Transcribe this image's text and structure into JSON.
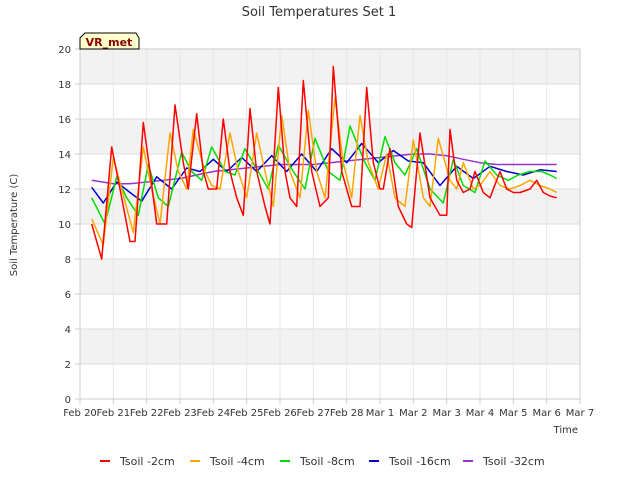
{
  "chart_data": {
    "type": "line",
    "title": "Soil Temperatures Set 1",
    "xlabel": "Time",
    "ylabel": "Soil Temperature (C)",
    "badge": "VR_met",
    "ylim": [
      0,
      20
    ],
    "yticks": [
      0,
      2,
      4,
      6,
      8,
      10,
      12,
      14,
      16,
      18,
      20
    ],
    "xlim": [
      0,
      15
    ],
    "xticks": [
      0,
      1,
      2,
      3,
      4,
      5,
      6,
      7,
      8,
      9,
      10,
      11,
      12,
      13,
      14,
      15
    ],
    "xtick_labels": [
      "Feb 20",
      "Feb 21",
      "Feb 22",
      "Feb 23",
      "Feb 24",
      "Feb 25",
      "Feb 26",
      "Feb 27",
      "Feb 28",
      "Mar 1",
      "Mar 2",
      "Mar 3",
      "Mar 4",
      "Mar 5",
      "Mar 6",
      "Mar 7"
    ],
    "grid": true,
    "legend_position": "bottom",
    "series": [
      {
        "name": "Tsoil -2cm",
        "color": "#ff0000",
        "x": [
          0.35,
          0.65,
          0.95,
          1.2,
          1.5,
          1.65,
          1.9,
          2.1,
          2.3,
          2.6,
          2.85,
          3.1,
          3.25,
          3.5,
          3.7,
          3.85,
          4.1,
          4.3,
          4.5,
          4.7,
          4.9,
          5.1,
          5.3,
          5.55,
          5.7,
          5.95,
          6.15,
          6.3,
          6.5,
          6.7,
          6.95,
          7.2,
          7.45,
          7.6,
          7.85,
          8.15,
          8.4,
          8.6,
          8.8,
          9.0,
          9.1,
          9.3,
          9.55,
          9.8,
          9.95,
          10.2,
          10.5,
          10.8,
          11.0,
          11.1,
          11.3,
          11.5,
          11.7,
          11.85,
          12.1,
          12.3,
          12.6,
          12.8,
          13.0,
          13.2,
          13.5,
          13.7,
          13.9,
          14.1,
          14.3
        ],
        "values": [
          10.0,
          8.0,
          14.4,
          12.0,
          9.0,
          9.0,
          15.8,
          13.0,
          10.0,
          10.0,
          16.8,
          13.5,
          12.0,
          16.3,
          13.0,
          12.0,
          12.0,
          16.0,
          13.0,
          11.5,
          10.5,
          16.6,
          13.0,
          11.0,
          10.0,
          17.8,
          13.0,
          11.5,
          11.0,
          18.2,
          13.0,
          11.0,
          11.5,
          19.0,
          13.0,
          11.0,
          11.0,
          17.8,
          13.5,
          12.0,
          12.0,
          14.3,
          11.0,
          10.0,
          9.8,
          15.2,
          11.5,
          10.5,
          10.5,
          15.4,
          12.5,
          11.8,
          12.0,
          13.0,
          11.8,
          11.5,
          13.0,
          12.0,
          11.8,
          11.8,
          12.0,
          12.5,
          11.8,
          11.6,
          11.5
        ]
      },
      {
        "name": "Tsoil -4cm",
        "color": "#ffa500",
        "x": [
          0.35,
          0.7,
          1.0,
          1.25,
          1.6,
          1.9,
          2.15,
          2.4,
          2.7,
          2.95,
          3.2,
          3.4,
          3.75,
          3.95,
          4.2,
          4.5,
          4.75,
          5.0,
          5.3,
          5.55,
          5.8,
          6.05,
          6.3,
          6.6,
          6.85,
          7.1,
          7.35,
          7.65,
          7.9,
          8.15,
          8.4,
          8.65,
          8.95,
          9.2,
          9.45,
          9.75,
          10.0,
          10.3,
          10.5,
          10.75,
          11.1,
          11.3,
          11.5,
          11.8,
          12.0,
          12.3,
          12.6,
          12.9,
          13.2,
          13.5,
          13.8,
          14.1,
          14.3
        ],
        "values": [
          10.3,
          8.8,
          13.8,
          12.0,
          9.5,
          14.4,
          12.0,
          10.0,
          15.2,
          13.0,
          12.0,
          15.4,
          13.0,
          12.2,
          12.0,
          15.2,
          13.0,
          11.5,
          15.2,
          13.0,
          11.0,
          16.2,
          13.0,
          11.5,
          16.5,
          13.0,
          11.5,
          17.2,
          13.5,
          11.5,
          16.2,
          13.5,
          12.0,
          14.0,
          11.5,
          11.0,
          14.8,
          11.5,
          11.0,
          14.9,
          12.5,
          12.0,
          13.5,
          12.0,
          12.2,
          13.0,
          12.2,
          12.0,
          12.2,
          12.5,
          12.2,
          12.0,
          11.8
        ]
      },
      {
        "name": "Tsoil -8cm",
        "color": "#00dd00",
        "x": [
          0.35,
          0.75,
          1.1,
          1.4,
          1.75,
          2.05,
          2.35,
          2.65,
          3.05,
          3.35,
          3.65,
          3.95,
          4.35,
          4.65,
          4.95,
          5.35,
          5.65,
          5.95,
          6.4,
          6.75,
          7.05,
          7.45,
          7.8,
          8.1,
          8.55,
          8.85,
          9.15,
          9.45,
          9.75,
          10.1,
          10.5,
          10.9,
          11.2,
          11.5,
          11.85,
          12.15,
          12.5,
          12.85,
          13.15,
          13.5,
          13.85,
          14.1,
          14.3
        ],
        "values": [
          11.5,
          10.0,
          12.7,
          11.5,
          10.5,
          13.4,
          11.5,
          11.0,
          14.1,
          13.0,
          12.5,
          14.4,
          13.0,
          12.8,
          14.3,
          13.0,
          12.0,
          14.5,
          13.0,
          12.0,
          14.9,
          13.0,
          12.5,
          15.6,
          13.5,
          12.5,
          15.0,
          13.5,
          12.8,
          14.3,
          12.0,
          11.2,
          13.7,
          12.2,
          11.8,
          13.6,
          12.8,
          12.5,
          12.8,
          13.0,
          13.0,
          12.8,
          12.6
        ]
      },
      {
        "name": "Tsoil -16cm",
        "color": "#0000cc",
        "x": [
          0.35,
          0.7,
          1.1,
          1.5,
          1.85,
          2.3,
          2.75,
          3.2,
          3.6,
          4.0,
          4.4,
          4.85,
          5.3,
          5.75,
          6.2,
          6.65,
          7.1,
          7.55,
          8.0,
          8.45,
          8.95,
          9.4,
          9.85,
          10.3,
          10.8,
          11.3,
          11.8,
          12.3,
          12.8,
          13.3,
          13.8,
          14.3
        ],
        "values": [
          12.1,
          11.2,
          12.4,
          11.8,
          11.3,
          12.7,
          12.0,
          13.2,
          13.0,
          13.7,
          13.0,
          13.8,
          13.0,
          13.9,
          13.0,
          14.0,
          13.0,
          14.3,
          13.5,
          14.6,
          13.5,
          14.2,
          13.6,
          13.5,
          12.2,
          13.3,
          12.6,
          13.3,
          13.0,
          12.8,
          13.1,
          13.0
        ]
      },
      {
        "name": "Tsoil -32cm",
        "color": "#9933cc",
        "x": [
          0.35,
          1.0,
          1.5,
          2.0,
          2.5,
          3.0,
          3.5,
          4.0,
          4.5,
          5.0,
          5.5,
          6.0,
          6.5,
          7.0,
          7.5,
          8.0,
          8.5,
          9.0,
          9.5,
          10.0,
          10.5,
          11.0,
          11.5,
          12.0,
          12.5,
          13.0,
          13.5,
          14.0,
          14.3
        ],
        "values": [
          12.5,
          12.3,
          12.3,
          12.4,
          12.5,
          12.6,
          12.8,
          13.0,
          13.1,
          13.2,
          13.3,
          13.4,
          13.4,
          13.4,
          13.5,
          13.6,
          13.7,
          13.8,
          13.9,
          14.0,
          14.0,
          13.9,
          13.7,
          13.5,
          13.4,
          13.4,
          13.4,
          13.4,
          13.4
        ]
      }
    ]
  }
}
